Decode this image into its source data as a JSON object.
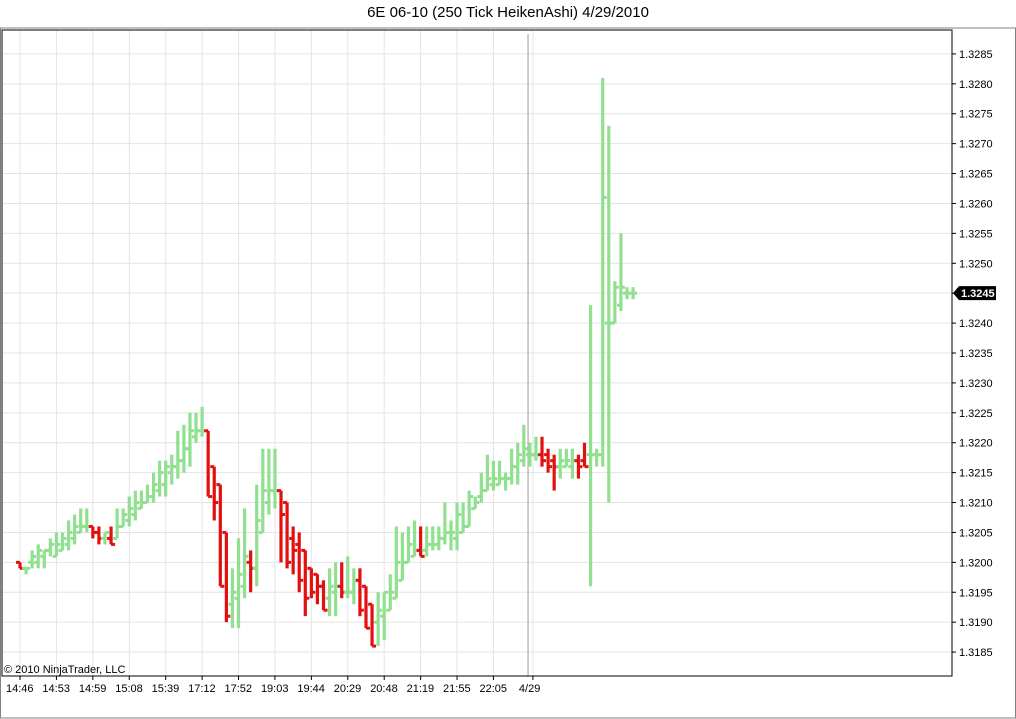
{
  "chart_data": {
    "type": "ohlc",
    "title": "6E 06-10 (250 Tick HeikenAshi)  4/29/2010",
    "ylim": [
      1.3181,
      1.3289
    ],
    "y_ticks": [
      "1.3185",
      "1.3190",
      "1.3195",
      "1.3200",
      "1.3205",
      "1.3210",
      "1.3215",
      "1.3220",
      "1.3225",
      "1.3230",
      "1.3235",
      "1.3240",
      "1.3245",
      "1.3250",
      "1.3255",
      "1.3260",
      "1.3265",
      "1.3270",
      "1.3275",
      "1.3280",
      "1.3285"
    ],
    "x_ticks": [
      {
        "label": "14:46",
        "bar": 0
      },
      {
        "label": "14:53",
        "bar": 6
      },
      {
        "label": "14:59",
        "bar": 12
      },
      {
        "label": "15:08",
        "bar": 18
      },
      {
        "label": "15:39",
        "bar": 24
      },
      {
        "label": "17:12",
        "bar": 30
      },
      {
        "label": "17:52",
        "bar": 36
      },
      {
        "label": "19:03",
        "bar": 42
      },
      {
        "label": "19:44",
        "bar": 48
      },
      {
        "label": "20:29",
        "bar": 54
      },
      {
        "label": "20:48",
        "bar": 60
      },
      {
        "label": "21:19",
        "bar": 66
      },
      {
        "label": "21:55",
        "bar": 72
      },
      {
        "label": "22:05",
        "bar": 78
      },
      {
        "label": "4/29",
        "bar": 84.5
      }
    ],
    "session_break_bar": 83.7,
    "last_price": "1.3245",
    "last_price_value": 1.3245,
    "up_color": "#90e090",
    "down_color": "#e31010",
    "grid": true,
    "bars": [
      {
        "o": 1.32,
        "h": 1.32,
        "l": 1.3199,
        "c": 1.3199
      },
      {
        "o": 1.3199,
        "h": 1.3199,
        "l": 1.3198,
        "c": 1.3199
      },
      {
        "o": 1.32,
        "h": 1.3202,
        "l": 1.3199,
        "c": 1.3201
      },
      {
        "o": 1.32,
        "h": 1.3203,
        "l": 1.3199,
        "c": 1.3202
      },
      {
        "o": 1.3201,
        "h": 1.3202,
        "l": 1.3199,
        "c": 1.3202
      },
      {
        "o": 1.3202,
        "h": 1.3204,
        "l": 1.3201,
        "c": 1.3203
      },
      {
        "o": 1.3201,
        "h": 1.3205,
        "l": 1.3201,
        "c": 1.3203
      },
      {
        "o": 1.3202,
        "h": 1.3205,
        "l": 1.3202,
        "c": 1.3204
      },
      {
        "o": 1.3203,
        "h": 1.3207,
        "l": 1.3202,
        "c": 1.3205
      },
      {
        "o": 1.3204,
        "h": 1.3208,
        "l": 1.3203,
        "c": 1.3206
      },
      {
        "o": 1.3205,
        "h": 1.3209,
        "l": 1.3205,
        "c": 1.3206
      },
      {
        "o": 1.3206,
        "h": 1.3209,
        "l": 1.3205,
        "c": 1.3206
      },
      {
        "o": 1.3206,
        "h": 1.3206,
        "l": 1.3204,
        "c": 1.3205
      },
      {
        "o": 1.3205,
        "h": 1.3206,
        "l": 1.3203,
        "c": 1.3204
      },
      {
        "o": 1.3204,
        "h": 1.3205,
        "l": 1.3203,
        "c": 1.3205
      },
      {
        "o": 1.3204,
        "h": 1.3206,
        "l": 1.3203,
        "c": 1.3203
      },
      {
        "o": 1.3204,
        "h": 1.3209,
        "l": 1.3204,
        "c": 1.3206
      },
      {
        "o": 1.3206,
        "h": 1.3209,
        "l": 1.3206,
        "c": 1.3208
      },
      {
        "o": 1.3207,
        "h": 1.3211,
        "l": 1.3206,
        "c": 1.3209
      },
      {
        "o": 1.3208,
        "h": 1.3212,
        "l": 1.3207,
        "c": 1.321
      },
      {
        "o": 1.3209,
        "h": 1.3212,
        "l": 1.3209,
        "c": 1.321
      },
      {
        "o": 1.321,
        "h": 1.3213,
        "l": 1.321,
        "c": 1.3211
      },
      {
        "o": 1.3211,
        "h": 1.3215,
        "l": 1.321,
        "c": 1.3213
      },
      {
        "o": 1.3212,
        "h": 1.3217,
        "l": 1.3211,
        "c": 1.3215
      },
      {
        "o": 1.3213,
        "h": 1.3217,
        "l": 1.3211,
        "c": 1.3216
      },
      {
        "o": 1.3215,
        "h": 1.3218,
        "l": 1.3213,
        "c": 1.3216
      },
      {
        "o": 1.3216,
        "h": 1.3222,
        "l": 1.3214,
        "c": 1.3217
      },
      {
        "o": 1.3217,
        "h": 1.3223,
        "l": 1.3215,
        "c": 1.3219
      },
      {
        "o": 1.3219,
        "h": 1.3225,
        "l": 1.3216,
        "c": 1.3222
      },
      {
        "o": 1.3221,
        "h": 1.3225,
        "l": 1.322,
        "c": 1.3222
      },
      {
        "o": 1.3222,
        "h": 1.3226,
        "l": 1.3221,
        "c": 1.3222
      },
      {
        "o": 1.3222,
        "h": 1.3222,
        "l": 1.3211,
        "c": 1.3211
      },
      {
        "o": 1.3216,
        "h": 1.3216,
        "l": 1.3207,
        "c": 1.321
      },
      {
        "o": 1.3213,
        "h": 1.3213,
        "l": 1.3196,
        "c": 1.3196
      },
      {
        "o": 1.3205,
        "h": 1.3205,
        "l": 1.319,
        "c": 1.3191
      },
      {
        "o": 1.3193,
        "h": 1.3199,
        "l": 1.3189,
        "c": 1.3195
      },
      {
        "o": 1.3194,
        "h": 1.3204,
        "l": 1.3189,
        "c": 1.3198
      },
      {
        "o": 1.3196,
        "h": 1.3209,
        "l": 1.3194,
        "c": 1.3201
      },
      {
        "o": 1.32,
        "h": 1.3202,
        "l": 1.3195,
        "c": 1.3199
      },
      {
        "o": 1.3199,
        "h": 1.3213,
        "l": 1.3196,
        "c": 1.3207
      },
      {
        "o": 1.3205,
        "h": 1.3219,
        "l": 1.3205,
        "c": 1.3212
      },
      {
        "o": 1.321,
        "h": 1.3219,
        "l": 1.3208,
        "c": 1.3212
      },
      {
        "o": 1.3212,
        "h": 1.3219,
        "l": 1.3209,
        "c": 1.3212
      },
      {
        "o": 1.3212,
        "h": 1.3212,
        "l": 1.32,
        "c": 1.3208
      },
      {
        "o": 1.321,
        "h": 1.321,
        "l": 1.3199,
        "c": 1.32
      },
      {
        "o": 1.3204,
        "h": 1.3206,
        "l": 1.3198,
        "c": 1.3202
      },
      {
        "o": 1.3203,
        "h": 1.3205,
        "l": 1.3195,
        "c": 1.3197
      },
      {
        "o": 1.3202,
        "h": 1.3202,
        "l": 1.3191,
        "c": 1.3194
      },
      {
        "o": 1.3199,
        "h": 1.3199,
        "l": 1.3194,
        "c": 1.3195
      },
      {
        "o": 1.3198,
        "h": 1.3198,
        "l": 1.3193,
        "c": 1.3196
      },
      {
        "o": 1.3196,
        "h": 1.3197,
        "l": 1.3192,
        "c": 1.3192
      },
      {
        "o": 1.3194,
        "h": 1.3199,
        "l": 1.3191,
        "c": 1.3196
      },
      {
        "o": 1.3195,
        "h": 1.32,
        "l": 1.3191,
        "c": 1.3196
      },
      {
        "o": 1.3196,
        "h": 1.32,
        "l": 1.3194,
        "c": 1.3195
      },
      {
        "o": 1.3195,
        "h": 1.3201,
        "l": 1.3194,
        "c": 1.3195
      },
      {
        "o": 1.3195,
        "h": 1.3199,
        "l": 1.3193,
        "c": 1.3197
      },
      {
        "o": 1.3197,
        "h": 1.3199,
        "l": 1.3191,
        "c": 1.3192
      },
      {
        "o": 1.3196,
        "h": 1.3196,
        "l": 1.3189,
        "c": 1.3189
      },
      {
        "o": 1.3193,
        "h": 1.3193,
        "l": 1.3186,
        "c": 1.3186
      },
      {
        "o": 1.319,
        "h": 1.3195,
        "l": 1.3186,
        "c": 1.3192
      },
      {
        "o": 1.3191,
        "h": 1.3195,
        "l": 1.3187,
        "c": 1.3195
      },
      {
        "o": 1.3192,
        "h": 1.3198,
        "l": 1.3192,
        "c": 1.3195
      },
      {
        "o": 1.3194,
        "h": 1.3206,
        "l": 1.3194,
        "c": 1.32
      },
      {
        "o": 1.3197,
        "h": 1.3205,
        "l": 1.3197,
        "c": 1.32
      },
      {
        "o": 1.32,
        "h": 1.3206,
        "l": 1.32,
        "c": 1.3203
      },
      {
        "o": 1.3201,
        "h": 1.3207,
        "l": 1.3201,
        "c": 1.3202
      },
      {
        "o": 1.3202,
        "h": 1.3206,
        "l": 1.3201,
        "c": 1.3201
      },
      {
        "o": 1.3202,
        "h": 1.3206,
        "l": 1.3201,
        "c": 1.3203
      },
      {
        "o": 1.3203,
        "h": 1.3206,
        "l": 1.3202,
        "c": 1.3203
      },
      {
        "o": 1.3203,
        "h": 1.3206,
        "l": 1.3202,
        "c": 1.3204
      },
      {
        "o": 1.3204,
        "h": 1.321,
        "l": 1.3203,
        "c": 1.3205
      },
      {
        "o": 1.3205,
        "h": 1.3207,
        "l": 1.3202,
        "c": 1.3205
      },
      {
        "o": 1.3204,
        "h": 1.321,
        "l": 1.3202,
        "c": 1.3208
      },
      {
        "o": 1.3205,
        "h": 1.321,
        "l": 1.3205,
        "c": 1.3206
      },
      {
        "o": 1.3206,
        "h": 1.3212,
        "l": 1.3206,
        "c": 1.3211
      },
      {
        "o": 1.3209,
        "h": 1.3211,
        "l": 1.3209,
        "c": 1.321
      },
      {
        "o": 1.3211,
        "h": 1.3215,
        "l": 1.321,
        "c": 1.3212
      },
      {
        "o": 1.3212,
        "h": 1.3218,
        "l": 1.3212,
        "c": 1.3214
      },
      {
        "o": 1.3213,
        "h": 1.3217,
        "l": 1.3212,
        "c": 1.3214
      },
      {
        "o": 1.3213,
        "h": 1.3217,
        "l": 1.3213,
        "c": 1.3214
      },
      {
        "o": 1.3214,
        "h": 1.3215,
        "l": 1.3212,
        "c": 1.3214
      },
      {
        "o": 1.3214,
        "h": 1.3219,
        "l": 1.3213,
        "c": 1.3216
      },
      {
        "o": 1.3216,
        "h": 1.322,
        "l": 1.3213,
        "c": 1.3218
      },
      {
        "o": 1.3217,
        "h": 1.3223,
        "l": 1.3216,
        "c": 1.3219
      },
      {
        "o": 1.3218,
        "h": 1.322,
        "l": 1.3216,
        "c": 1.3218
      },
      {
        "o": 1.3218,
        "h": 1.3221,
        "l": 1.3217,
        "c": 1.3218
      },
      {
        "o": 1.3218,
        "h": 1.3221,
        "l": 1.3216,
        "c": 1.3217
      },
      {
        "o": 1.3218,
        "h": 1.3219,
        "l": 1.3215,
        "c": 1.3216
      },
      {
        "o": 1.3217,
        "h": 1.3218,
        "l": 1.3212,
        "c": 1.3216
      },
      {
        "o": 1.3216,
        "h": 1.3219,
        "l": 1.3214,
        "c": 1.3217
      },
      {
        "o": 1.3216,
        "h": 1.3219,
        "l": 1.3216,
        "c": 1.3217
      },
      {
        "o": 1.3216,
        "h": 1.3219,
        "l": 1.3214,
        "c": 1.3217
      },
      {
        "o": 1.3217,
        "h": 1.3218,
        "l": 1.3214,
        "c": 1.3216
      },
      {
        "o": 1.3217,
        "h": 1.322,
        "l": 1.3216,
        "c": 1.3216
      },
      {
        "o": 1.3218,
        "h": 1.3243,
        "l": 1.3196,
        "c": 1.3218
      },
      {
        "o": 1.3218,
        "h": 1.3219,
        "l": 1.3216,
        "c": 1.3218
      },
      {
        "o": 1.3218,
        "h": 1.3281,
        "l": 1.3216,
        "c": 1.3261
      },
      {
        "o": 1.324,
        "h": 1.3273,
        "l": 1.321,
        "c": 1.324
      },
      {
        "o": 1.324,
        "h": 1.3247,
        "l": 1.324,
        "c": 1.3246
      },
      {
        "o": 1.3243,
        "h": 1.3255,
        "l": 1.3242,
        "c": 1.3246
      },
      {
        "o": 1.3245,
        "h": 1.3246,
        "l": 1.3244,
        "c": 1.3245
      },
      {
        "o": 1.3245,
        "h": 1.3246,
        "l": 1.3244,
        "c": 1.3245
      }
    ]
  },
  "footer": {
    "copyright": "© 2010 NinjaTrader, LLC"
  }
}
